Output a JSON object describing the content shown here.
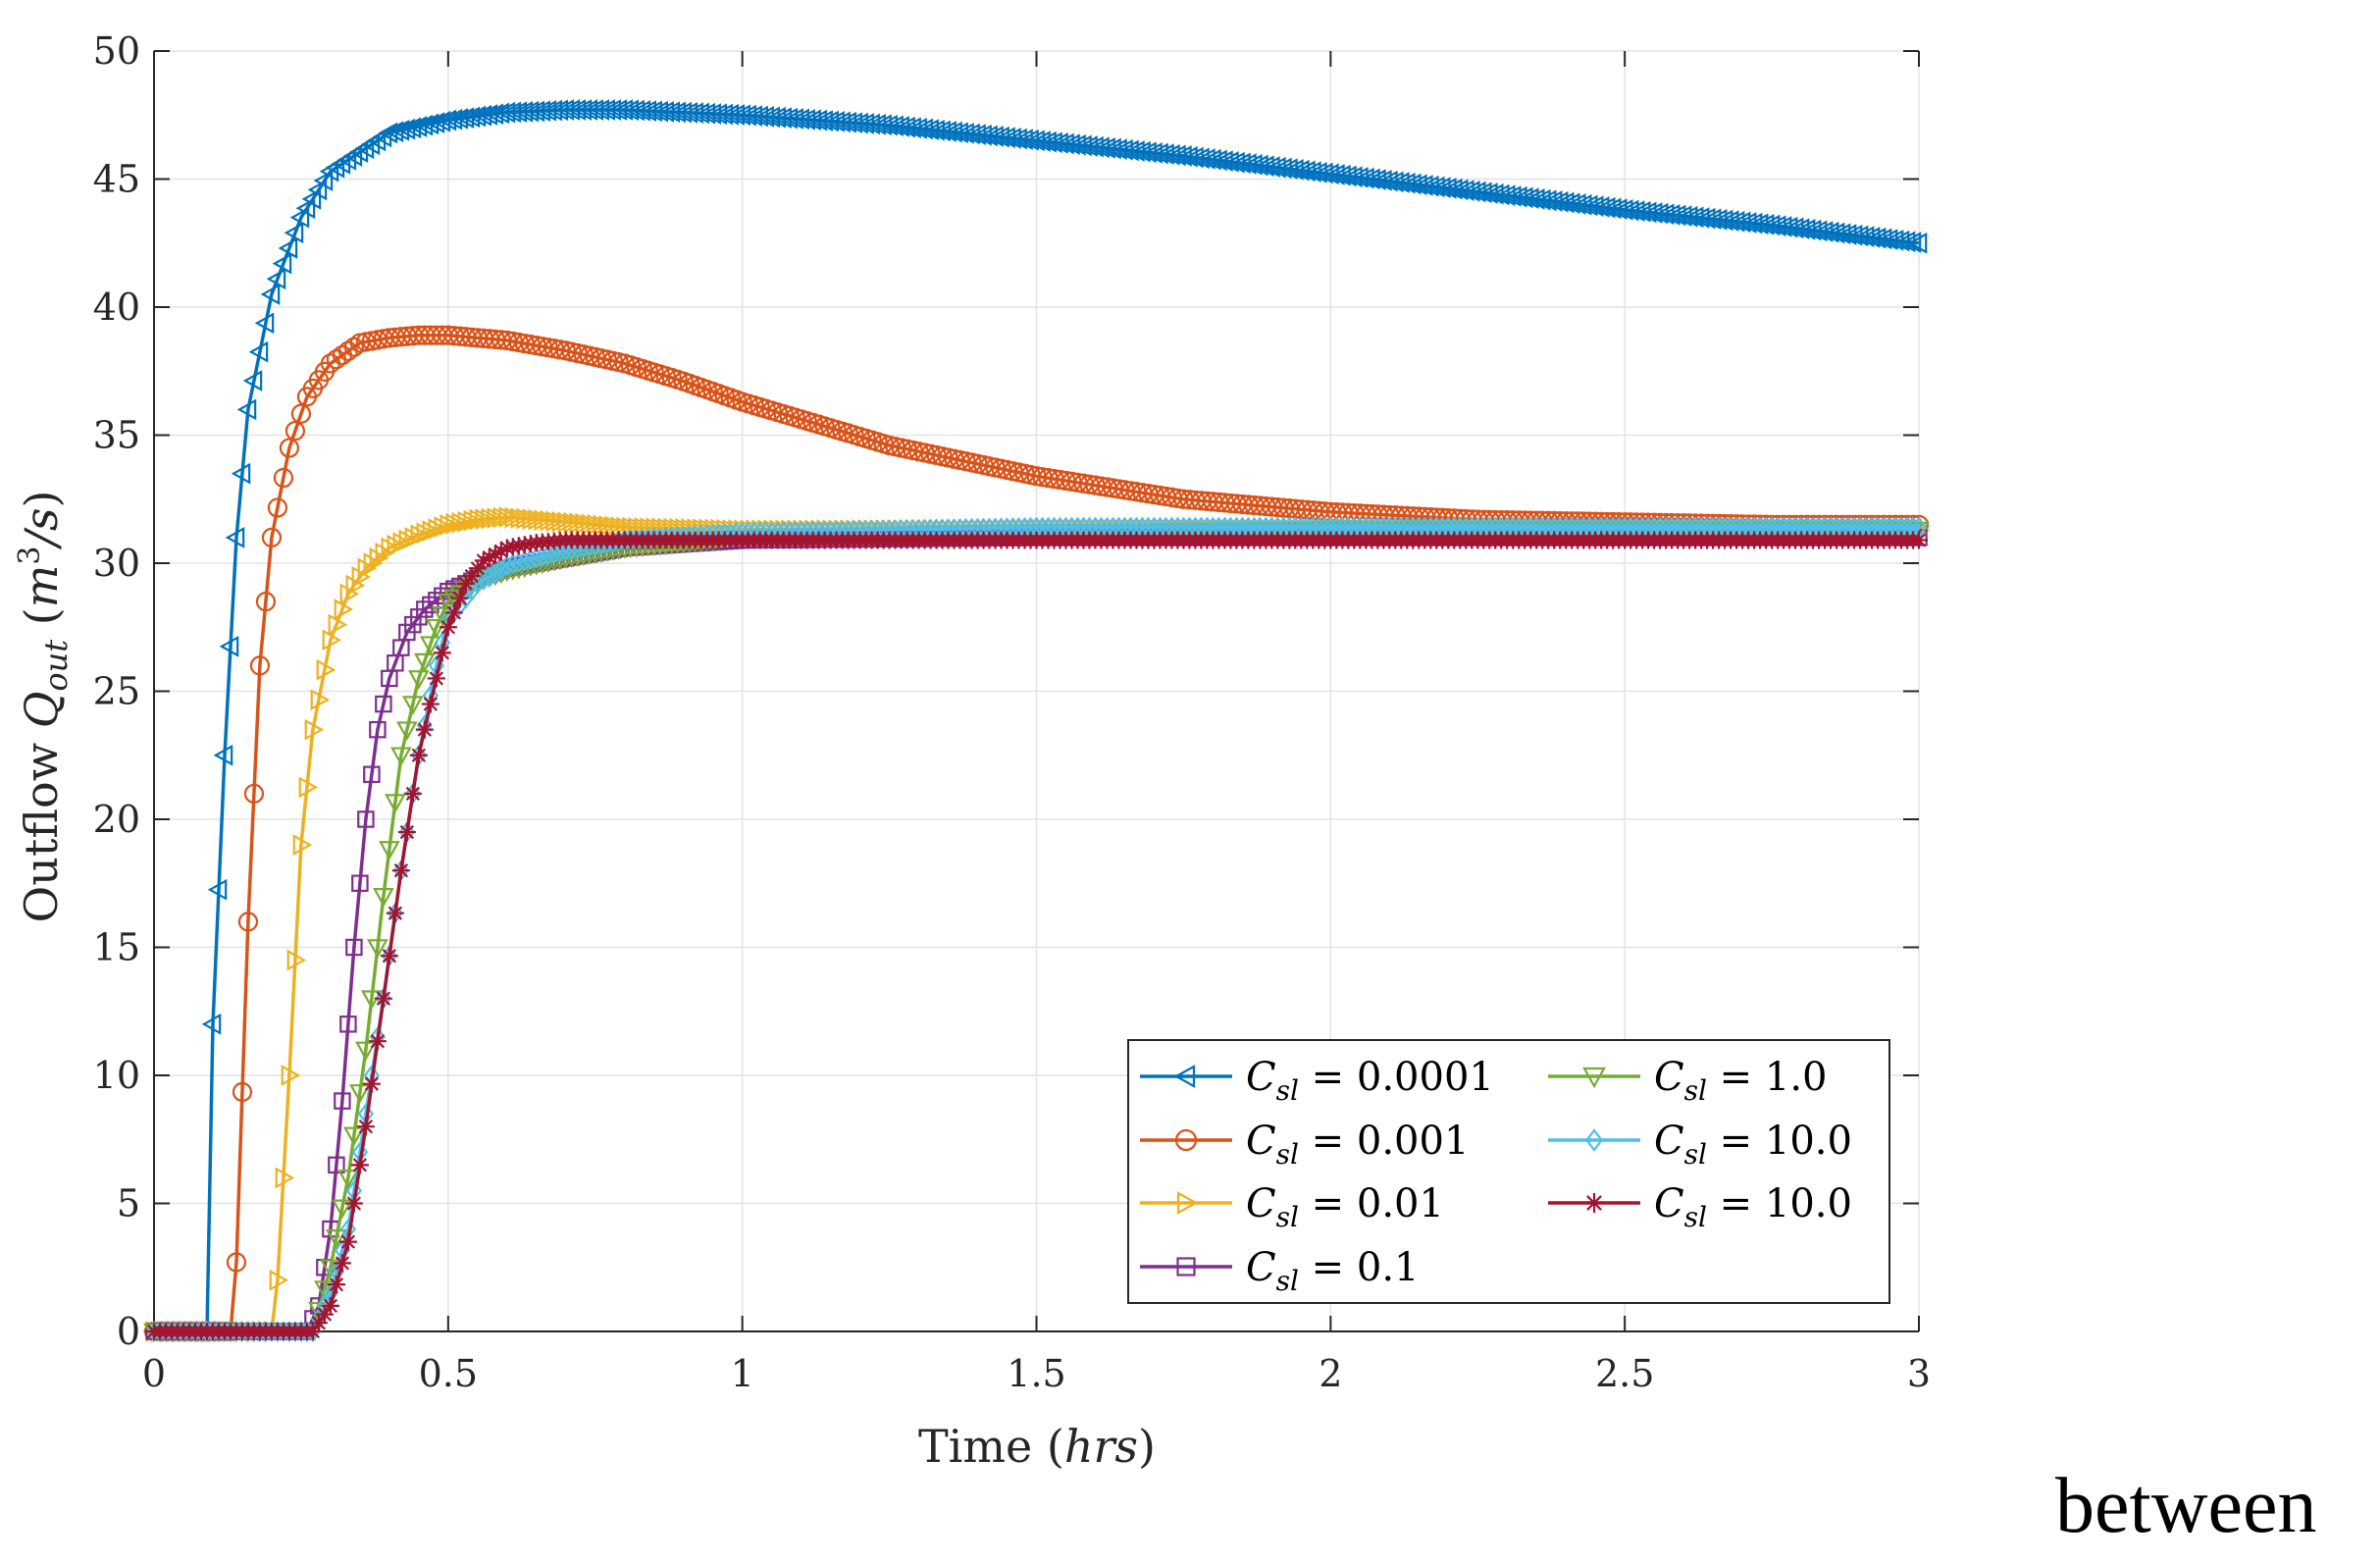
{
  "chart_data": {
    "type": "line",
    "title": "",
    "xlabel": {
      "text": "Time",
      "unit": "hrs"
    },
    "ylabel": {
      "text": "Outflow",
      "symbol": "Q",
      "subscript": "out",
      "unit_base": "m",
      "unit_exp": "3",
      "unit_tail": "/s"
    },
    "xlim": [
      0,
      3
    ],
    "ylim": [
      0,
      50
    ],
    "xticks": [
      0,
      0.5,
      1,
      1.5,
      2,
      2.5,
      3
    ],
    "xtick_labels": [
      "0",
      "0.5",
      "1",
      "1.5",
      "2",
      "2.5",
      "3"
    ],
    "yticks": [
      0,
      5,
      10,
      15,
      20,
      25,
      30,
      35,
      40,
      45,
      50
    ],
    "ytick_labels": [
      "0",
      "5",
      "10",
      "15",
      "20",
      "25",
      "30",
      "35",
      "40",
      "45",
      "50"
    ],
    "grid": true,
    "legend_position": "bottom-right",
    "legend_symbol": "C",
    "legend_subscript": "sl",
    "series": [
      {
        "name": "0.0001",
        "color": "#0072BD",
        "marker": "triangle-left",
        "x": [
          0,
          0.09,
          0.1,
          0.12,
          0.14,
          0.16,
          0.2,
          0.25,
          0.3,
          0.4,
          0.5,
          0.6,
          0.7,
          0.8,
          0.9,
          1.0,
          1.25,
          1.5,
          1.75,
          2.0,
          2.25,
          2.5,
          2.75,
          3.0
        ],
        "y": [
          0,
          0,
          12,
          22.5,
          31,
          36,
          40.5,
          43.5,
          45.3,
          46.8,
          47.3,
          47.6,
          47.7,
          47.7,
          47.6,
          47.5,
          47.1,
          46.5,
          45.9,
          45.2,
          44.5,
          43.8,
          43.2,
          42.5
        ]
      },
      {
        "name": "0.001",
        "color": "#D95319",
        "marker": "circle",
        "x": [
          0,
          0.13,
          0.14,
          0.16,
          0.18,
          0.2,
          0.23,
          0.26,
          0.3,
          0.35,
          0.4,
          0.45,
          0.5,
          0.6,
          0.7,
          0.8,
          0.9,
          1.0,
          1.25,
          1.5,
          1.75,
          2.0,
          2.25,
          2.5,
          2.75,
          3.0
        ],
        "y": [
          0,
          0,
          2.7,
          16,
          26,
          31,
          34.5,
          36.5,
          37.8,
          38.6,
          38.8,
          38.9,
          38.9,
          38.7,
          38.3,
          37.8,
          37.1,
          36.3,
          34.6,
          33.4,
          32.5,
          32.0,
          31.7,
          31.6,
          31.5,
          31.5
        ]
      },
      {
        "name": "0.01",
        "color": "#EDB120",
        "marker": "triangle-right",
        "x": [
          0,
          0.2,
          0.21,
          0.23,
          0.25,
          0.27,
          0.3,
          0.33,
          0.36,
          0.4,
          0.45,
          0.5,
          0.55,
          0.6,
          0.65,
          0.7,
          0.8,
          1.0,
          1.5,
          2.0,
          3.0
        ],
        "y": [
          0,
          0,
          2,
          10,
          19,
          23.5,
          27,
          28.8,
          29.8,
          30.6,
          31.1,
          31.5,
          31.7,
          31.8,
          31.7,
          31.6,
          31.4,
          31.3,
          31.3,
          31.3,
          31.3
        ]
      },
      {
        "name": "0.1",
        "color": "#7E2F8E",
        "marker": "square",
        "x": [
          0,
          0.26,
          0.28,
          0.3,
          0.32,
          0.34,
          0.36,
          0.38,
          0.4,
          0.43,
          0.46,
          0.5,
          0.55,
          0.6,
          0.7,
          0.8,
          1.0,
          1.5,
          2.0,
          3.0
        ],
        "y": [
          0,
          0,
          1,
          4,
          9,
          15,
          20,
          23.5,
          25.5,
          27.3,
          28.2,
          28.9,
          29.4,
          29.8,
          30.2,
          30.6,
          30.9,
          31.0,
          31.0,
          31.0
        ]
      },
      {
        "name": "1.0",
        "color": "#77AC30",
        "marker": "triangle-down",
        "x": [
          0,
          0.27,
          0.3,
          0.33,
          0.36,
          0.39,
          0.42,
          0.45,
          0.48,
          0.5,
          0.55,
          0.6,
          0.7,
          0.8,
          1.0,
          1.5,
          2.0,
          3.0
        ],
        "y": [
          0,
          0,
          2.5,
          6,
          11,
          17,
          22.5,
          25.5,
          27.5,
          28.5,
          29.3,
          29.7,
          30.2,
          30.6,
          31.0,
          31.2,
          31.3,
          31.3
        ]
      },
      {
        "name": "10.0",
        "color": "#4DBEEE",
        "marker": "diamond",
        "x": [
          0,
          0.27,
          0.3,
          0.33,
          0.36,
          0.39,
          0.42,
          0.45,
          0.48,
          0.5,
          0.55,
          0.6,
          0.7,
          0.8,
          1.0,
          1.5,
          2.0,
          3.0
        ],
        "y": [
          0,
          0,
          1.5,
          4,
          8.5,
          13,
          18,
          22.5,
          26,
          27.8,
          29.2,
          29.9,
          30.5,
          30.9,
          31.2,
          31.4,
          31.4,
          31.4
        ]
      },
      {
        "name": "10.0",
        "color": "#A2142F",
        "marker": "star",
        "x": [
          0,
          0.27,
          0.3,
          0.33,
          0.36,
          0.39,
          0.42,
          0.45,
          0.48,
          0.5,
          0.53,
          0.56,
          0.6,
          0.65,
          0.7,
          0.8,
          1.0,
          1.5,
          2.0,
          3.0
        ],
        "y": [
          0,
          0,
          1,
          3.5,
          8,
          13,
          18,
          22.5,
          25.5,
          27.5,
          29.2,
          30.1,
          30.6,
          30.8,
          30.9,
          30.9,
          30.9,
          30.9,
          30.9,
          30.9
        ]
      }
    ]
  },
  "footer_text": "between"
}
